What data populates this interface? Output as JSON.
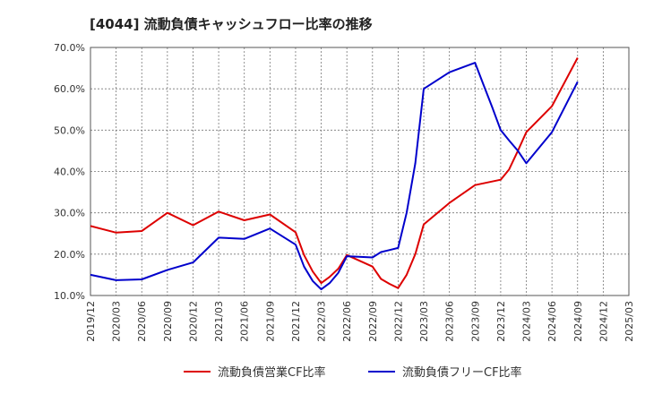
{
  "chart_data": {
    "type": "line",
    "title": "[4044]  流動負債キャッシュフロー比率の推移",
    "xlabel": "",
    "ylabel": "",
    "ylim": [
      10,
      70
    ],
    "yticks": [
      10,
      20,
      30,
      40,
      50,
      60,
      70
    ],
    "ytick_labels": [
      "10.0%",
      "20.0%",
      "30.0%",
      "40.0%",
      "50.0%",
      "60.0%",
      "70.0%"
    ],
    "xtick_labels": [
      "2019/12",
      "2020/03",
      "2020/06",
      "2020/09",
      "2020/12",
      "2021/03",
      "2021/06",
      "2021/09",
      "2021/12",
      "2022/03",
      "2022/06",
      "2022/09",
      "2022/12",
      "2023/03",
      "2023/06",
      "2023/09",
      "2023/12",
      "2024/03",
      "2024/06",
      "2024/09",
      "2024/12",
      "2025/03"
    ],
    "grid": true,
    "legend_position": "bottom",
    "series": [
      {
        "name": "流動負債営業CF比率",
        "color": "#dd0000",
        "points": [
          [
            0,
            26.8
          ],
          [
            1,
            25.2
          ],
          [
            2,
            25.6
          ],
          [
            3,
            30.0
          ],
          [
            4,
            27.0
          ],
          [
            5,
            30.3
          ],
          [
            6,
            28.2
          ],
          [
            7,
            29.6
          ],
          [
            8,
            25.3
          ],
          [
            8.33,
            19.8
          ],
          [
            8.67,
            15.8
          ],
          [
            9,
            13.0
          ],
          [
            9.33,
            14.5
          ],
          [
            9.67,
            16.5
          ],
          [
            10,
            19.8
          ],
          [
            11,
            17.0
          ],
          [
            11.33,
            14.0
          ],
          [
            11.67,
            12.8
          ],
          [
            12,
            11.8
          ],
          [
            12.33,
            15.0
          ],
          [
            12.67,
            20.0
          ],
          [
            13,
            27.2
          ],
          [
            14,
            32.4
          ],
          [
            15,
            36.7
          ],
          [
            16,
            38.0
          ],
          [
            16.33,
            40.5
          ],
          [
            16.67,
            45.0
          ],
          [
            17,
            49.5
          ],
          [
            18,
            55.8
          ],
          [
            19,
            67.5
          ]
        ]
      },
      {
        "name": "流動負債フリーCF比率",
        "color": "#0000cc",
        "points": [
          [
            0,
            15.0
          ],
          [
            1,
            13.7
          ],
          [
            2,
            13.9
          ],
          [
            3,
            16.2
          ],
          [
            4,
            18.0
          ],
          [
            5,
            24.0
          ],
          [
            6,
            23.7
          ],
          [
            7,
            26.2
          ],
          [
            8,
            22.3
          ],
          [
            8.33,
            17.0
          ],
          [
            8.67,
            13.5
          ],
          [
            9,
            11.5
          ],
          [
            9.33,
            13.0
          ],
          [
            9.67,
            15.5
          ],
          [
            10,
            19.5
          ],
          [
            11,
            19.2
          ],
          [
            11.33,
            20.5
          ],
          [
            11.67,
            21.0
          ],
          [
            12,
            21.5
          ],
          [
            12.33,
            30.0
          ],
          [
            12.67,
            42.0
          ],
          [
            13,
            60.0
          ],
          [
            14,
            64.0
          ],
          [
            15,
            66.3
          ],
          [
            15.33,
            61.0
          ],
          [
            15.67,
            55.5
          ],
          [
            16,
            50.0
          ],
          [
            16.33,
            47.5
          ],
          [
            16.67,
            45.0
          ],
          [
            17,
            42.0
          ],
          [
            18,
            49.5
          ],
          [
            19,
            61.7
          ]
        ]
      }
    ]
  }
}
